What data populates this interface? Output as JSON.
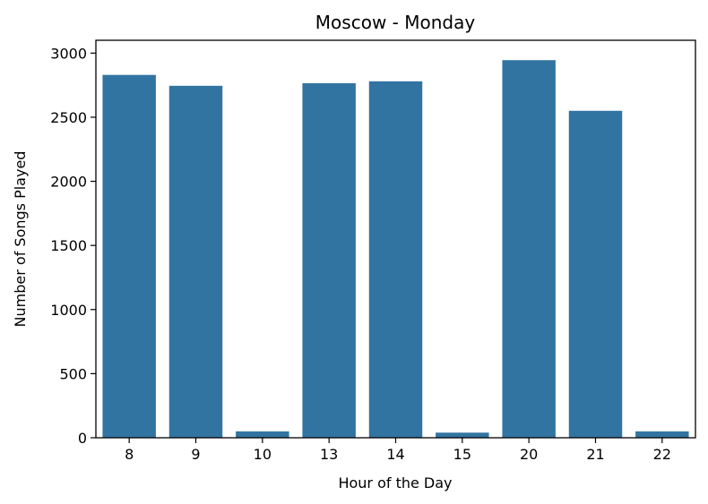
{
  "chart_data": {
    "type": "bar",
    "title": "Moscow - Monday",
    "xlabel": "Hour of the Day",
    "ylabel": "Number of Songs Played",
    "categories": [
      "8",
      "9",
      "10",
      "13",
      "14",
      "15",
      "20",
      "21",
      "22"
    ],
    "values": [
      2830,
      2745,
      50,
      2765,
      2780,
      40,
      2945,
      2550,
      50
    ],
    "yticks": [
      0,
      500,
      1000,
      1500,
      2000,
      2500,
      3000
    ],
    "ylim": [
      0,
      3100
    ],
    "bar_color": "#3274a1",
    "grid": false,
    "legend": "none"
  }
}
